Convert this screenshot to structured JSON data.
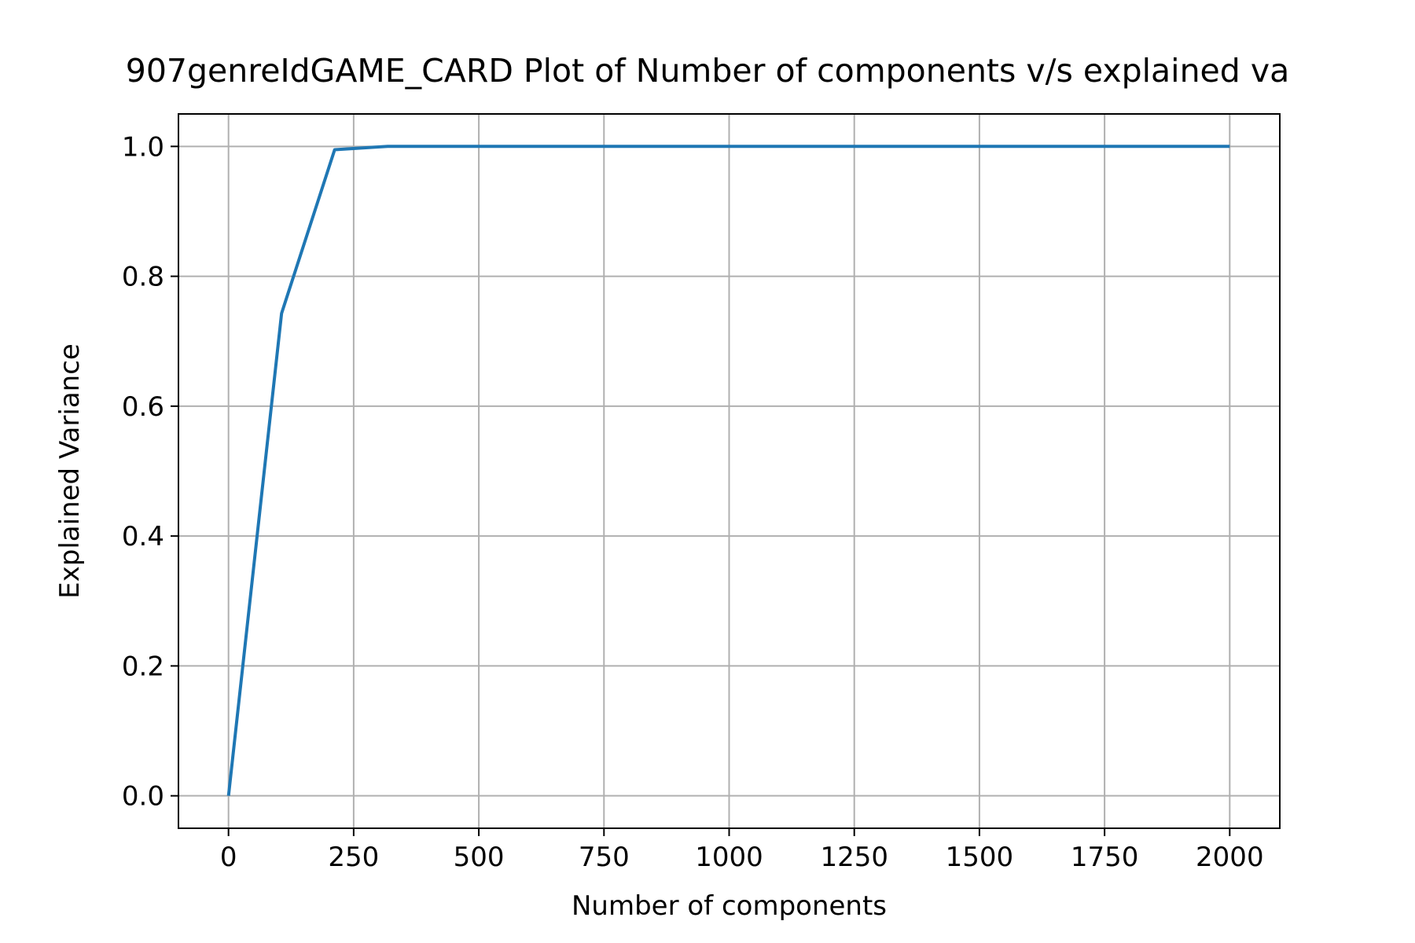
{
  "chart_data": {
    "type": "line",
    "title": "907genreIdGAME_CARD Plot of Number of components v/s explained va",
    "xlabel": "Number of components",
    "ylabel": "Explained Variance",
    "xlim": [
      -100,
      2100
    ],
    "ylim": [
      -0.05,
      1.05
    ],
    "xticks": [
      0,
      250,
      500,
      750,
      1000,
      1250,
      1500,
      1750,
      2000
    ],
    "xtick_labels": [
      "0",
      "250",
      "500",
      "750",
      "1000",
      "1250",
      "1500",
      "1750",
      "2000"
    ],
    "yticks": [
      0.0,
      0.2,
      0.4,
      0.6,
      0.8,
      1.0
    ],
    "ytick_labels": [
      "0.0",
      "0.2",
      "0.4",
      "0.6",
      "0.8",
      "1.0"
    ],
    "grid": true,
    "series": [
      {
        "color": "#1f77b4",
        "x": [
          0,
          106,
          212,
          318,
          2000
        ],
        "y": [
          0.0,
          0.743,
          0.995,
          1.0,
          1.0
        ]
      }
    ]
  }
}
